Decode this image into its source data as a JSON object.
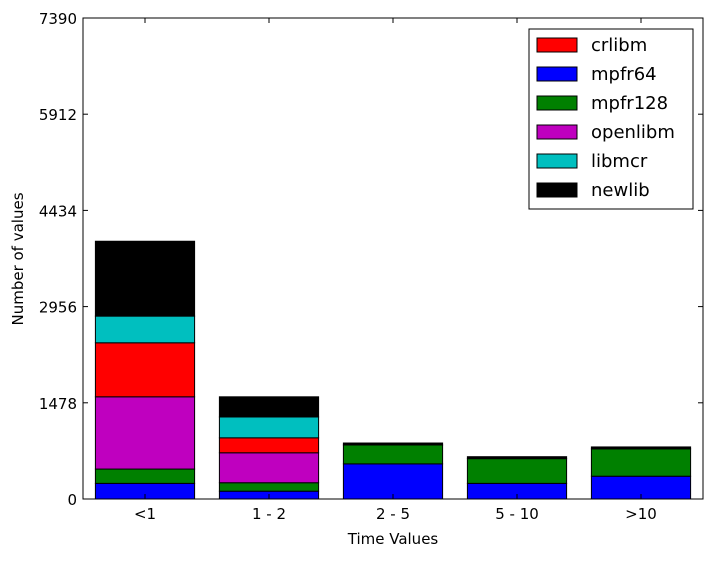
{
  "chart_data": {
    "type": "bar",
    "stacked": true,
    "title": "",
    "xlabel": "Time Values",
    "ylabel": "Number of values",
    "categories": [
      "<1",
      "1 - 2",
      "2 - 5",
      "5 - 10",
      ">10"
    ],
    "yticks": [
      0,
      1478,
      2956,
      4434,
      5912,
      7390
    ],
    "ylim": [
      0,
      7390
    ],
    "grid": false,
    "legend_position": "top-right",
    "series": [
      {
        "name": "mpfr64",
        "color": "#0000ff",
        "values": [
          240,
          120,
          540,
          240,
          350
        ]
      },
      {
        "name": "mpfr128",
        "color": "#008000",
        "values": [
          220,
          130,
          290,
          380,
          420
        ]
      },
      {
        "name": "openlibm",
        "color": "#bf00bf",
        "values": [
          1110,
          460,
          0,
          0,
          0
        ]
      },
      {
        "name": "crlibm",
        "color": "#ff0000",
        "values": [
          830,
          230,
          0,
          0,
          0
        ]
      },
      {
        "name": "libmcr",
        "color": "#00bfbf",
        "values": [
          410,
          320,
          0,
          0,
          0
        ]
      },
      {
        "name": "newlib",
        "color": "#000000",
        "values": [
          1150,
          310,
          30,
          30,
          30
        ]
      }
    ],
    "legend_order": [
      "crlibm",
      "mpfr64",
      "mpfr128",
      "openlibm",
      "libmcr",
      "newlib"
    ]
  }
}
